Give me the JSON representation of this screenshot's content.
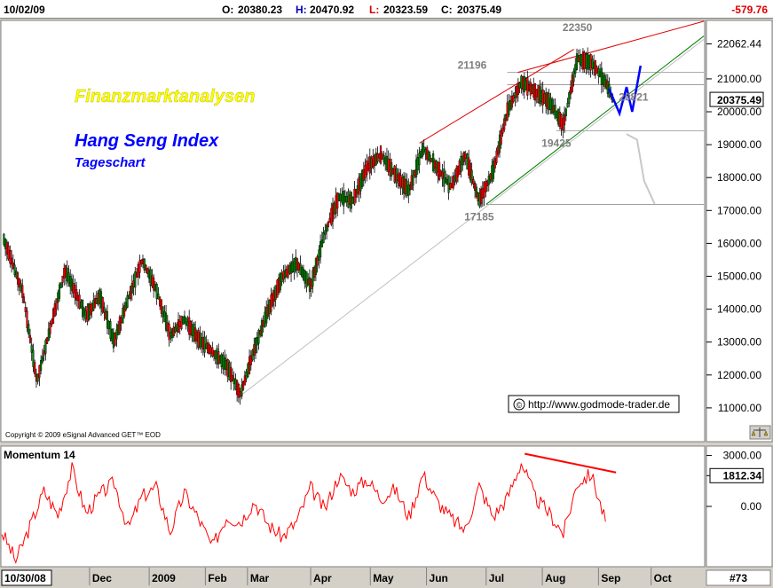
{
  "header": {
    "date": "10/02/09",
    "open_label": "O:",
    "open": "20380.23",
    "high_label": "H:",
    "high": "20470.92",
    "low_label": "L:",
    "low": "20323.59",
    "close_label": "C:",
    "close": "20375.49",
    "change": "-579.76"
  },
  "watermark": {
    "brand": "Finanzmarktanalysen",
    "index_name": "Hang Seng Index",
    "chart_kind": "Tageschart",
    "copyright": "Copyright © 2009 eSignal Advanced GET™ EOD",
    "url": "http://www.godmode-trader.de",
    "copyright_symbol": "©"
  },
  "footer": {
    "start_date": "10/30/08",
    "page_num": "#73"
  },
  "colors": {
    "bull": "#008000",
    "bear": "#ff0000",
    "trend_red": "#e00000",
    "trend_green": "#008000",
    "forecast_blue": "#0000ff",
    "momentum": "#ff0000",
    "price_tag_bg": "#ffffff"
  },
  "chart_data": [
    {
      "type": "candlestick",
      "title": "",
      "yticks": [
        "11000.00",
        "12000.00",
        "13000.00",
        "14000.00",
        "15000.00",
        "16000.00",
        "17000.00",
        "18000.00",
        "19000.00",
        "20000.00",
        "21000.00",
        "22062.44"
      ],
      "ytick_values": [
        11000,
        12000,
        13000,
        14000,
        15000,
        16000,
        17000,
        18000,
        19000,
        20000,
        21000,
        22062.44
      ],
      "ylim": [
        10000,
        22750
      ],
      "months": [
        "Dec",
        "2009",
        "Feb",
        "Mar",
        "Apr",
        "May",
        "Jun",
        "Jul",
        "Aug",
        "Sep",
        "Oct"
      ],
      "month_positions": [
        2.5,
        11,
        19,
        25,
        34,
        42.5,
        50.5,
        59,
        67,
        75,
        82.5
      ],
      "x_range": [
        -10,
        90
      ],
      "last_price": 20375.49,
      "last_price_label": "20375.49",
      "level_labels": [
        {
          "text": "22350",
          "value": 22350,
          "x": 72
        },
        {
          "text": "21196",
          "value": 21196,
          "x": 57
        },
        {
          "text": "20821",
          "value": 20821,
          "x": 80
        },
        {
          "text": "19425",
          "value": 19425,
          "x": 69
        },
        {
          "text": "17185",
          "value": 17185,
          "x": 58
        }
      ],
      "horizontal_levels": [
        21196,
        20821,
        19425,
        17185
      ],
      "trendlines": [
        {
          "color": "red",
          "points": [
            [
              49.5,
              19050
            ],
            [
              71.5,
              21900
            ]
          ]
        },
        {
          "color": "red",
          "points": [
            [
              63.5,
              21196
            ],
            [
              90,
              22750
            ]
          ]
        },
        {
          "color": "green",
          "points": [
            [
              59,
              17185
            ],
            [
              90,
              22300
            ]
          ]
        },
        {
          "color": "gray",
          "points": [
            [
              24,
              11370
            ],
            [
              90,
              22200
            ]
          ]
        }
      ],
      "forecast_blue": [
        [
          76.5,
          20700
        ],
        [
          78,
          19950
        ],
        [
          79,
          20750
        ],
        [
          79.8,
          20000
        ],
        [
          81,
          21400
        ]
      ],
      "forecast_gray": [
        [
          79,
          19320
        ],
        [
          80.5,
          19150
        ],
        [
          81.5,
          17900
        ],
        [
          83,
          17200
        ]
      ],
      "pivots": [
        {
          "date_index": 24,
          "value": 11370
        },
        {
          "date_index": 64,
          "value": 21196
        },
        {
          "date_index": 72,
          "value": 21900
        }
      ]
    },
    {
      "type": "line",
      "title": "Momentum 14",
      "yticks": [
        "3000.00",
        "1812.34",
        "0.00"
      ],
      "ytick_values": [
        3000,
        1812.34,
        0
      ],
      "ylim": [
        -3500,
        3500
      ],
      "x_range": [
        -10,
        90
      ],
      "series": [
        {
          "name": "Momentum 14",
          "x": [
            -10,
            -8,
            -6,
            -4,
            -2,
            0,
            2,
            4,
            6,
            8,
            10,
            12,
            14,
            16,
            18,
            20,
            22,
            24,
            26,
            28,
            30,
            32,
            34,
            36,
            38,
            40,
            42,
            44,
            46,
            48,
            50,
            52,
            54,
            56,
            58,
            60,
            62,
            64,
            66,
            68,
            70,
            72,
            74,
            76
          ],
          "values": [
            -1500,
            -3200,
            -1200,
            900,
            -500,
            2200,
            -400,
            700,
            1400,
            -1300,
            600,
            1100,
            -1500,
            800,
            -700,
            -2400,
            -600,
            -900,
            300,
            -1100,
            -1800,
            -900,
            1100,
            -200,
            1800,
            900,
            1600,
            500,
            1000,
            -600,
            1900,
            300,
            -700,
            -1400,
            1200,
            -600,
            500,
            2600,
            500,
            -400,
            -1600,
            1400,
            1900,
            -900
          ]
        }
      ],
      "divergence_line": [
        [
          64.5,
          3100
        ],
        [
          77.5,
          2000
        ]
      ]
    }
  ]
}
